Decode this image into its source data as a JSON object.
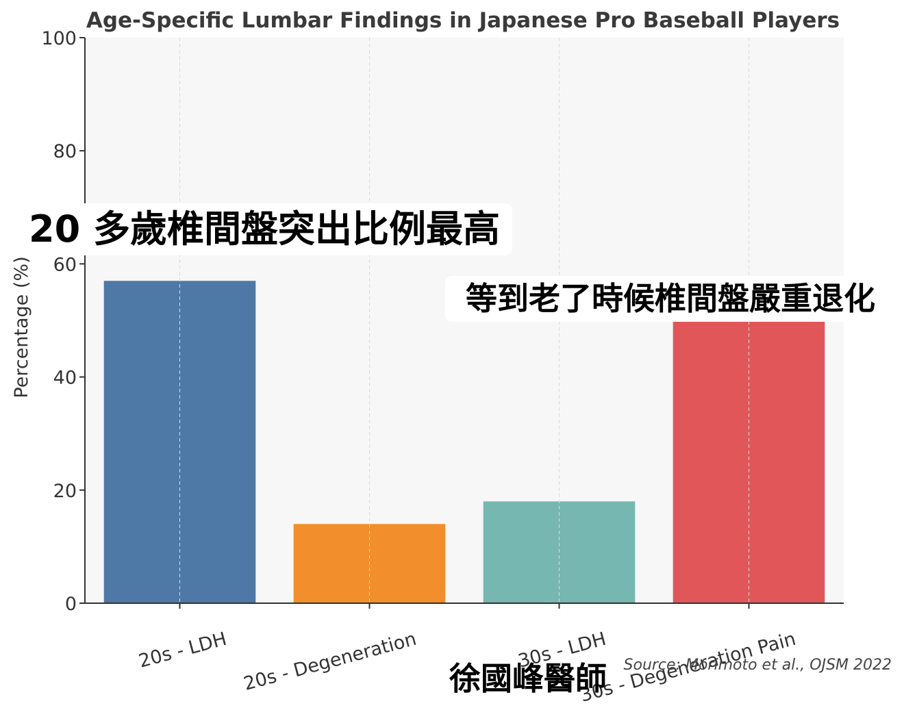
{
  "chart_data": {
    "type": "bar",
    "title": "Age-Specific Lumbar Findings in Japanese Pro Baseball Players",
    "ylabel": "Percentage (%)",
    "xlabel": "",
    "categories": [
      "20s - LDH",
      "20s - Degeneration",
      "30s - LDH",
      "30s - Degeneration Pain"
    ],
    "values": [
      57,
      14,
      18,
      50
    ],
    "colors": [
      "#4e79a7",
      "#f28e2b",
      "#76b7b2",
      "#e15759"
    ],
    "ylim": [
      0,
      100
    ],
    "yticks": [
      0,
      20,
      40,
      60,
      80,
      100
    ],
    "grid": "vertical dashed",
    "legend": "none",
    "source": "Source: Morimoto et al., OJSM 2022"
  },
  "overlays": {
    "callout_1": "20 多歲椎間盤突出比例最高",
    "callout_2": "等到老了時候椎間盤嚴重退化",
    "author": "徐國峰醫師"
  },
  "colors": {
    "plot_background": "#f7f7f7",
    "axis": "#333333",
    "title_text": "#3a3a3a"
  }
}
